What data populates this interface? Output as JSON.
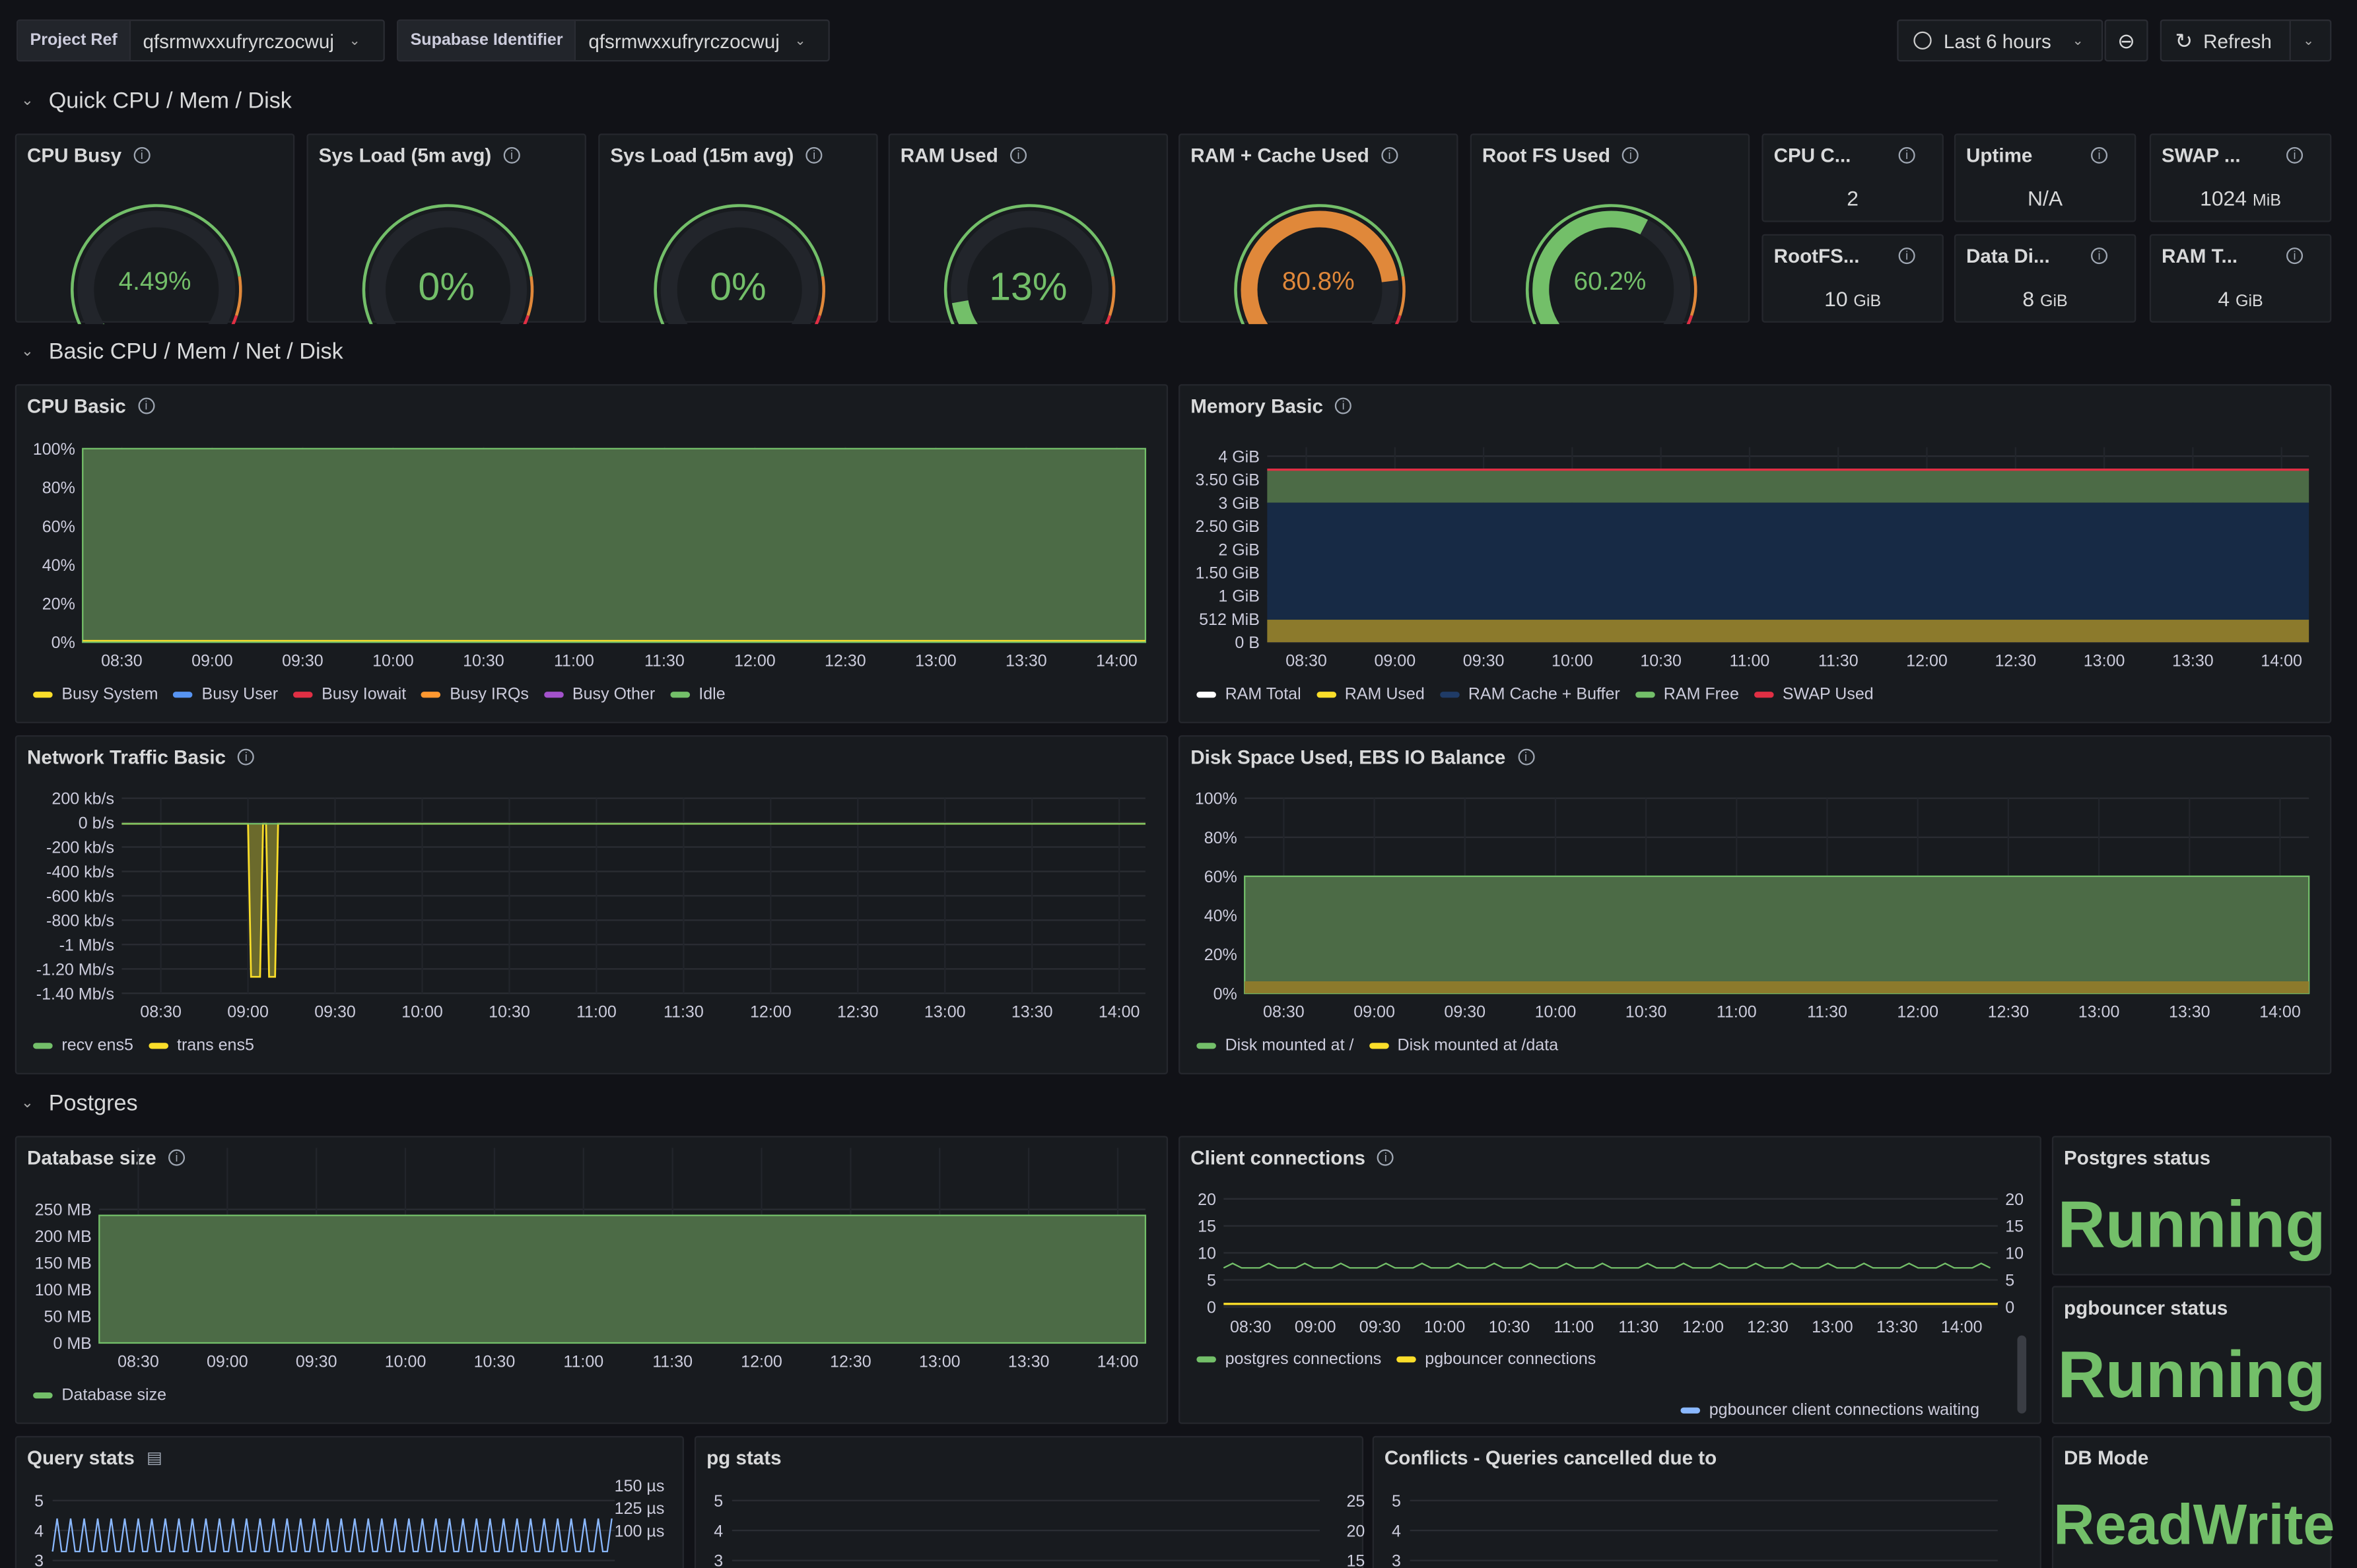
{
  "vars": {
    "project_ref_label": "Project Ref",
    "project_ref_value": "qfsrmwxxufryrczocwuj",
    "supabase_id_label": "Supabase Identifier",
    "supabase_id_value": "qfsrmwxxufryrczocwuj"
  },
  "toolbar": {
    "time_range": "Last 6 hours",
    "refresh": "Refresh"
  },
  "rows": {
    "quick": "Quick CPU / Mem / Disk",
    "basic": "Basic CPU / Mem / Net / Disk",
    "postgres": "Postgres"
  },
  "gauges": [
    {
      "title": "CPU Busy",
      "value": "4.49%",
      "fraction": 0.0449,
      "color": "#73bf69"
    },
    {
      "title": "Sys Load (5m avg)",
      "value": "0%",
      "fraction": 0,
      "color": "#73bf69"
    },
    {
      "title": "Sys Load (15m avg)",
      "value": "0%",
      "fraction": 0,
      "color": "#73bf69"
    },
    {
      "title": "RAM Used",
      "value": "13%",
      "fraction": 0.13,
      "color": "#73bf69"
    },
    {
      "title": "RAM + Cache Used",
      "value": "80.8%",
      "fraction": 0.808,
      "color": "#e0883a"
    },
    {
      "title": "Root FS Used",
      "value": "60.2%",
      "fraction": 0.602,
      "color": "#73bf69"
    }
  ],
  "stats": [
    {
      "title": "CPU C...",
      "value": "2",
      "unit": ""
    },
    {
      "title": "Uptime",
      "value": "N/A",
      "unit": ""
    },
    {
      "title": "SWAP ...",
      "value": "1024",
      "unit": "MiB"
    },
    {
      "title": "RootFS...",
      "value": "10",
      "unit": "GiB"
    },
    {
      "title": "Data Di...",
      "value": "8",
      "unit": "GiB"
    },
    {
      "title": "RAM T...",
      "value": "4",
      "unit": "GiB"
    }
  ],
  "time_ticks": [
    "08:30",
    "09:00",
    "09:30",
    "10:00",
    "10:30",
    "11:00",
    "11:30",
    "12:00",
    "12:30",
    "13:00",
    "13:30",
    "14:00"
  ],
  "panels": {
    "cpu_basic": {
      "title": "CPU Basic",
      "yticks": [
        "100%",
        "80%",
        "60%",
        "40%",
        "20%",
        "0%"
      ],
      "legend": [
        {
          "name": "Busy System",
          "color": "#fade2a"
        },
        {
          "name": "Busy User",
          "color": "#5794f2"
        },
        {
          "name": "Busy Iowait",
          "color": "#e02f44"
        },
        {
          "name": "Busy IRQs",
          "color": "#ff9830"
        },
        {
          "name": "Busy Other",
          "color": "#a352cc"
        },
        {
          "name": "Idle",
          "color": "#73bf69"
        }
      ]
    },
    "memory_basic": {
      "title": "Memory Basic",
      "yticks": [
        "4 GiB",
        "3.50 GiB",
        "3 GiB",
        "2.50 GiB",
        "2 GiB",
        "1.50 GiB",
        "1 GiB",
        "512 MiB",
        "0 B"
      ],
      "legend": [
        {
          "name": "RAM Total",
          "color": "#ffffff"
        },
        {
          "name": "RAM Used",
          "color": "#fade2a"
        },
        {
          "name": "RAM Cache + Buffer",
          "color": "#1f3b66"
        },
        {
          "name": "RAM Free",
          "color": "#73bf69"
        },
        {
          "name": "SWAP Used",
          "color": "#e02f44"
        }
      ]
    },
    "network_basic": {
      "title": "Network Traffic Basic",
      "yticks": [
        "200 kb/s",
        "0 b/s",
        "-200 kb/s",
        "-400 kb/s",
        "-600 kb/s",
        "-800 kb/s",
        "-1 Mb/s",
        "-1.20 Mb/s",
        "-1.40 Mb/s"
      ],
      "legend": [
        {
          "name": "recv ens5",
          "color": "#73bf69"
        },
        {
          "name": "trans ens5",
          "color": "#fade2a"
        }
      ]
    },
    "disk_space": {
      "title": "Disk Space Used, EBS IO Balance",
      "yticks": [
        "100%",
        "80%",
        "60%",
        "40%",
        "20%",
        "0%"
      ],
      "legend": [
        {
          "name": "Disk mounted at /",
          "color": "#73bf69"
        },
        {
          "name": "Disk mounted at /data",
          "color": "#fade2a"
        }
      ]
    },
    "db_size": {
      "title": "Database size",
      "yticks": [
        "250 MB",
        "200 MB",
        "150 MB",
        "100 MB",
        "50 MB",
        "0 MB"
      ],
      "legend": [
        {
          "name": "Database size",
          "color": "#73bf69"
        }
      ]
    },
    "client_conn": {
      "title": "Client connections",
      "yticks": [
        "20",
        "15",
        "10",
        "5",
        "0"
      ],
      "legend": [
        {
          "name": "postgres connections",
          "color": "#73bf69"
        },
        {
          "name": "pgbouncer connections",
          "color": "#fade2a"
        }
      ],
      "legend2": {
        "name": "pgbouncer client connections waiting",
        "color": "#8ab8ff"
      }
    },
    "postgres_status": {
      "title": "Postgres status",
      "value": "Running"
    },
    "pgbouncer_status": {
      "title": "pgbouncer status",
      "value": "Running"
    },
    "query_stats": {
      "title": "Query stats",
      "yticks": [
        "5",
        "4",
        "3"
      ],
      "y2ticks": [
        "150 µs",
        "125 µs",
        "100 µs"
      ]
    },
    "pg_stats": {
      "title": "pg stats",
      "yticks": [
        "5",
        "4",
        "3"
      ],
      "y2ticks": [
        "25",
        "20",
        "15"
      ]
    },
    "conflicts": {
      "title": "Conflicts - Queries cancelled due to",
      "yticks": [
        "5",
        "4",
        "3"
      ]
    },
    "db_mode": {
      "title": "DB Mode",
      "value": "ReadWrite"
    }
  }
}
